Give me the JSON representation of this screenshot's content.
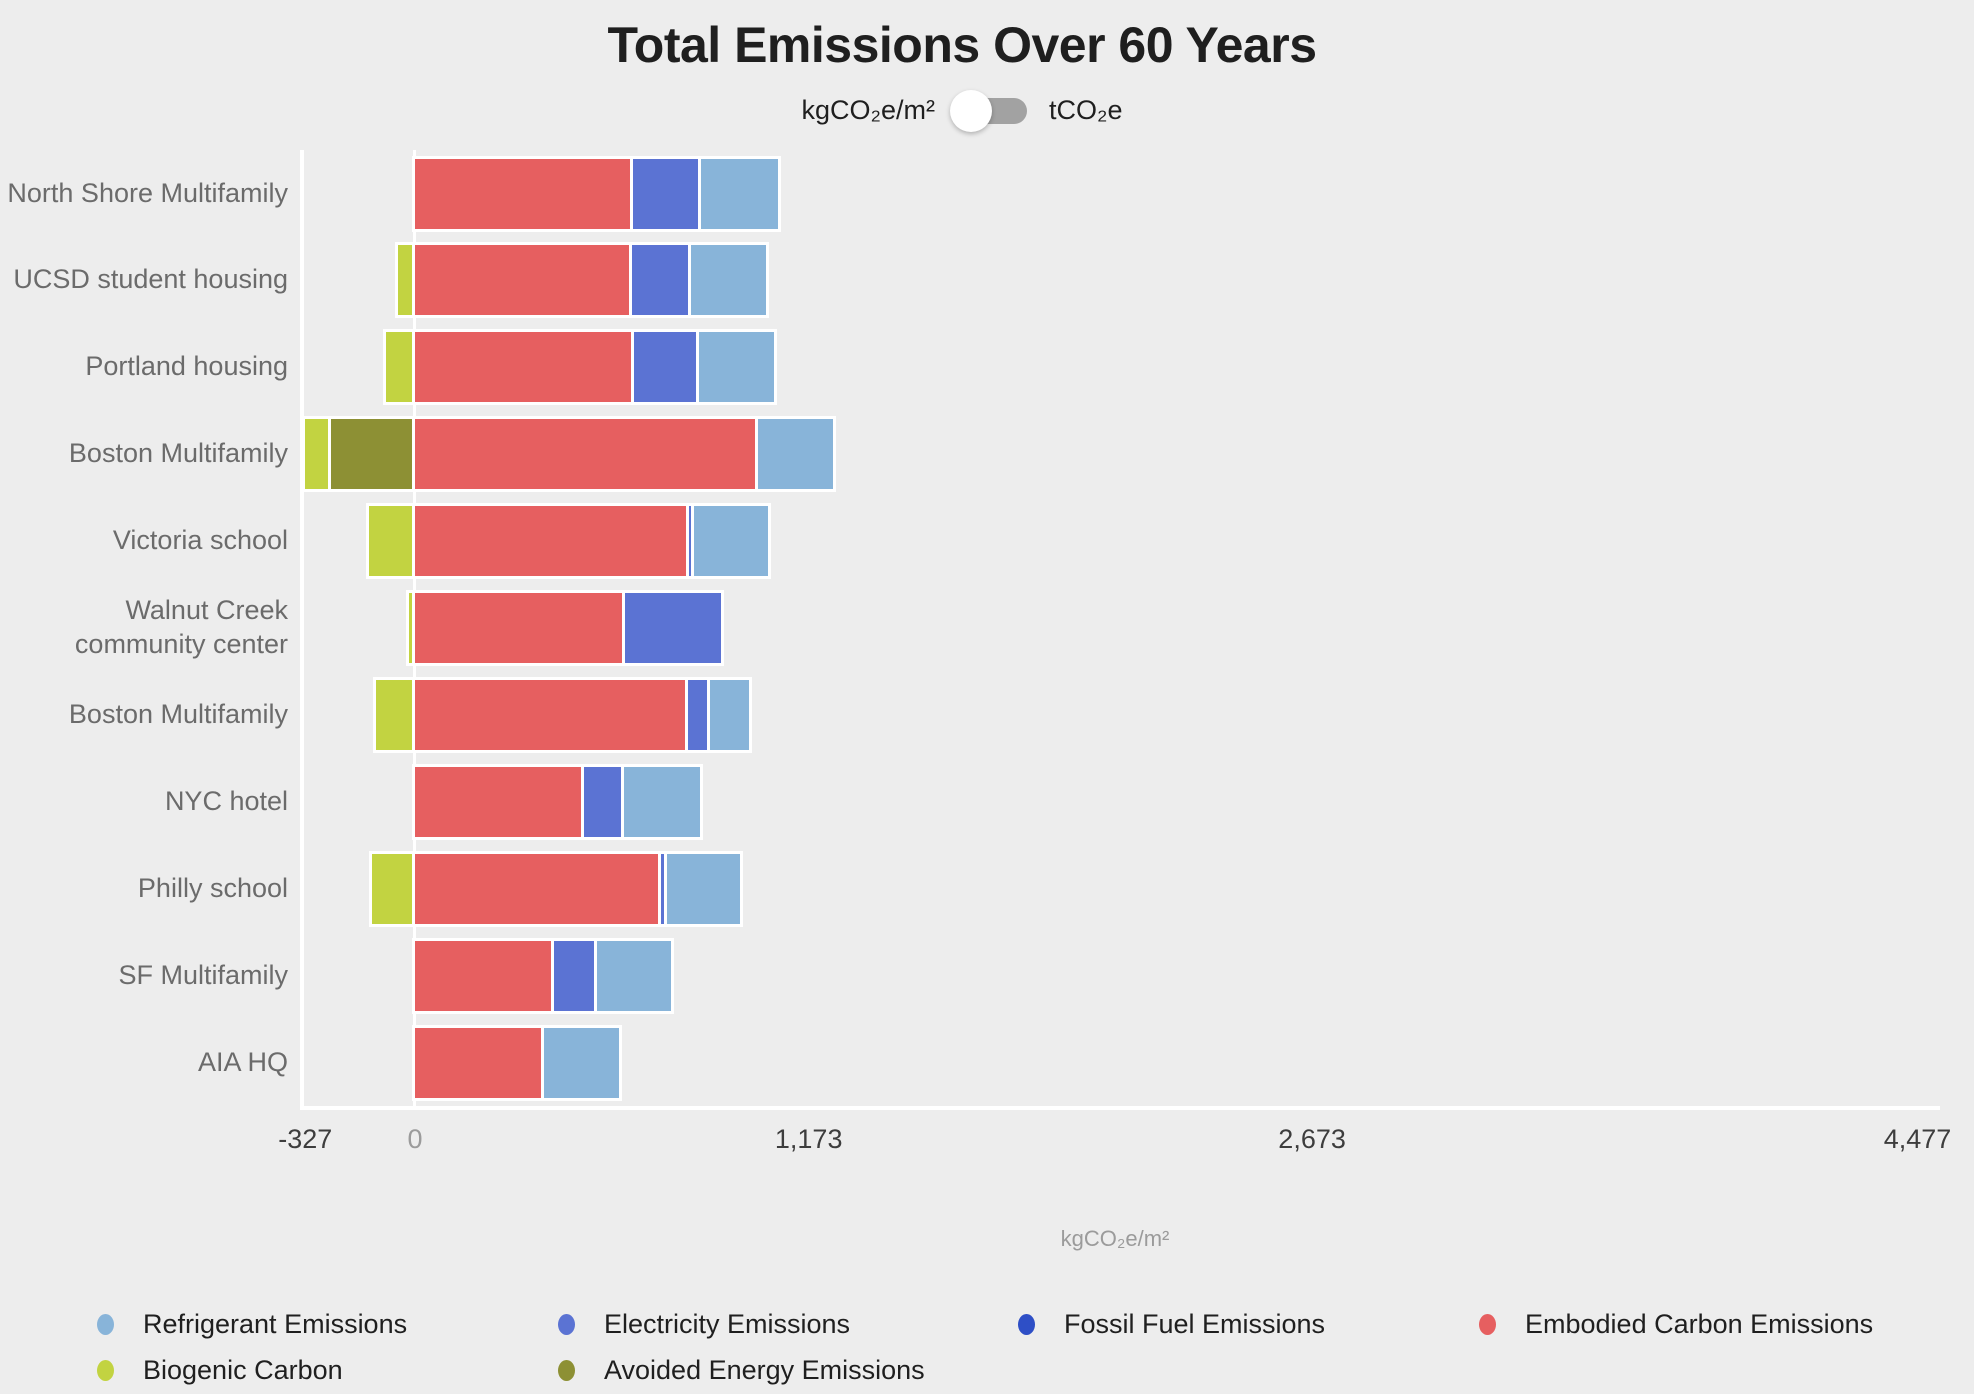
{
  "title": "Total Emissions Over 60 Years",
  "unit_toggle": {
    "left_label": "kgCO₂e/m²",
    "right_label": "tCO₂e",
    "selected": "kgCO₂e/m²"
  },
  "colors": {
    "refrigerant": "#88b4d9",
    "electricity": "#5b73d3",
    "fossil": "#2e4fc6",
    "embodied": "#e65f60",
    "biogenic": "#c2d341",
    "avoided": "#8d9034",
    "background": "#ededed",
    "axis_white": "#ffffff"
  },
  "legend": [
    {
      "key": "refrigerant",
      "label": "Refrigerant Emissions"
    },
    {
      "key": "electricity",
      "label": "Electricity Emissions"
    },
    {
      "key": "fossil",
      "label": "Fossil Fuel Emissions"
    },
    {
      "key": "embodied",
      "label": "Embodied Carbon Emissions"
    },
    {
      "key": "biogenic",
      "label": "Biogenic Carbon"
    },
    {
      "key": "avoided",
      "label": "Avoided Energy Emissions"
    }
  ],
  "chart_data": {
    "type": "bar",
    "orientation": "horizontal",
    "stacked": true,
    "title": "Total Emissions Over 60 Years",
    "xlabel": "kgCO₂e/m²",
    "xlim": [
      -327,
      4477
    ],
    "grid": false,
    "legend_position": "bottom",
    "xticks": [
      {
        "value": -327,
        "label": "-327"
      },
      {
        "value": 0,
        "label": "0"
      },
      {
        "value": 1173,
        "label": "1,173"
      },
      {
        "value": 2673,
        "label": "2,673"
      },
      {
        "value": 4477,
        "label": "4,477"
      }
    ],
    "series_order": [
      "biogenic",
      "avoided",
      "embodied",
      "electricity",
      "fossil",
      "refrigerant"
    ],
    "categories": [
      "North Shore Multifamily",
      "UCSD student housing",
      "Portland housing",
      "Boston Multifamily",
      "Victoria school",
      "Walnut Creek community center",
      "Boston Multifamily",
      "NYC hotel",
      "Philly school",
      "SF Multifamily",
      "AIA HQ"
    ],
    "rows": [
      {
        "label": "North Shore Multifamily",
        "values": {
          "embodied": 650,
          "electricity": 202,
          "refrigerant": 239
        }
      },
      {
        "label": "UCSD student housing",
        "values": {
          "biogenic": -52,
          "embodied": 645,
          "electricity": 178,
          "refrigerant": 232
        }
      },
      {
        "label": "Portland housing",
        "values": {
          "biogenic": -87,
          "embodied": 652,
          "electricity": 194,
          "refrigerant": 233
        }
      },
      {
        "label": "Boston Multifamily",
        "values": {
          "biogenic": -77,
          "avoided": -250,
          "embodied": 1023,
          "refrigerant": 231
        }
      },
      {
        "label": "Victoria school",
        "values": {
          "biogenic": -136,
          "embodied": 817,
          "electricity": 14,
          "refrigerant": 228
        }
      },
      {
        "label": "Walnut Creek community center",
        "values": {
          "biogenic": -18,
          "embodied": 625,
          "electricity": 297
        }
      },
      {
        "label": "Boston Multifamily",
        "values": {
          "biogenic": -117,
          "embodied": 814,
          "electricity": 64,
          "refrigerant": 126
        }
      },
      {
        "label": "NYC hotel",
        "values": {
          "embodied": 502,
          "electricity": 120,
          "refrigerant": 235
        }
      },
      {
        "label": "Philly school",
        "values": {
          "biogenic": -127,
          "embodied": 734,
          "electricity": 18,
          "refrigerant": 227
        }
      },
      {
        "label": "SF Multifamily",
        "values": {
          "embodied": 413,
          "electricity": 128,
          "refrigerant": 230
        }
      },
      {
        "label": "AIA HQ",
        "values": {
          "embodied": 385,
          "refrigerant": 233
        }
      }
    ]
  }
}
